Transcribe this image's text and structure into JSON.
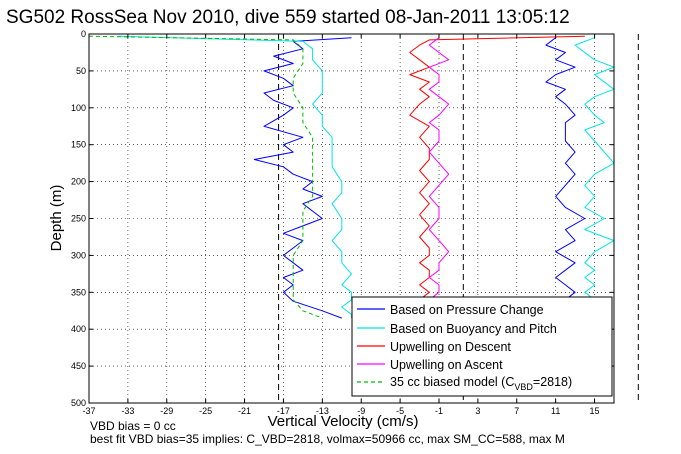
{
  "chart_data": {
    "type": "line",
    "title": "SG502 RossSea Nov 2010, dive 559 started 08-Jan-2011 13:05:12",
    "xlabel": "Vertical Velocity (cm/s)",
    "ylabel": "Depth (m)",
    "xlim": [
      -37,
      17
    ],
    "ylim": [
      500,
      0
    ],
    "y_reversed": true,
    "grid": true,
    "grid_style": "dotted",
    "x_ticks": [
      -37,
      -33,
      -29,
      -25,
      -21,
      -17,
      -13,
      -9,
      -5,
      -1,
      3,
      7,
      11,
      15
    ],
    "y_ticks": [
      0,
      50,
      100,
      150,
      200,
      250,
      300,
      350,
      400,
      450,
      500
    ],
    "vertical_reference_lines": [
      -17.5,
      1.5,
      19.5
    ],
    "legend_position": "lower-right",
    "series": [
      {
        "name": "Based on Pressure Change",
        "color": "#0000ff",
        "style": "solid",
        "groups": [
          {
            "x": [
              -10,
              -16,
              -15,
              -18,
              -16,
              -19,
              -17,
              -16,
              -19,
              -18,
              -16,
              -17,
              -19,
              -15,
              -17,
              -16,
              -20,
              -17,
              -16,
              -14,
              -15,
              -13,
              -15,
              -14,
              -13,
              -15,
              -17,
              -15,
              -16,
              -17,
              -16,
              -15,
              -17,
              -16,
              -17,
              -16,
              -13,
              -11
            ],
            "y": [
              5,
              10,
              20,
              30,
              40,
              50,
              60,
              70,
              80,
              90,
              100,
              110,
              125,
              140,
              150,
              160,
              170,
              180,
              190,
              200,
              210,
              220,
              230,
              240,
              250,
              260,
              270,
              280,
              290,
              300,
              310,
              320,
              330,
              340,
              350,
              362,
              375,
              385
            ]
          },
          {
            "x": [
              11,
              10,
              12,
              11,
              13,
              11,
              10,
              12,
              11,
              12,
              13,
              12,
              12,
              12,
              13,
              12,
              13,
              12,
              11,
              12,
              14,
              12,
              13,
              11,
              13,
              12,
              11,
              12,
              13,
              12,
              12
            ],
            "y": [
              5,
              15,
              25,
              35,
              45,
              55,
              65,
              75,
              85,
              95,
              110,
              120,
              130,
              145,
              160,
              175,
              190,
              205,
              220,
              235,
              250,
              265,
              280,
              295,
              310,
              320,
              330,
              340,
              350,
              360,
              365
            ]
          }
        ]
      },
      {
        "name": "Based on Buoyancy and Pitch",
        "color": "#00e5e5",
        "style": "solid",
        "groups": [
          {
            "x": [
              -34,
              -15,
              -14,
              -14,
              -13,
              -13,
              -13,
              -14,
              -13,
              -13,
              -12,
              -12,
              -12,
              -11,
              -11,
              -12,
              -11,
              -11,
              -12,
              -11,
              -11,
              -10,
              -11,
              -10,
              -10,
              -11,
              -10,
              -10
            ],
            "y": [
              3,
              10,
              20,
              35,
              50,
              65,
              80,
              95,
              110,
              125,
              140,
              160,
              180,
              200,
              215,
              230,
              250,
              265,
              280,
              295,
              310,
              325,
              340,
              350,
              360,
              370,
              380,
              385
            ]
          },
          {
            "x": [
              15,
              13,
              14,
              15,
              17,
              15,
              16,
              17,
              15,
              14,
              15,
              16,
              14,
              15,
              16,
              17,
              15,
              14,
              15,
              14,
              16,
              14,
              17,
              15,
              14,
              15,
              14,
              15,
              14,
              15,
              14
            ],
            "y": [
              5,
              15,
              25,
              35,
              45,
              55,
              65,
              75,
              85,
              95,
              110,
              120,
              130,
              145,
              160,
              175,
              190,
              205,
              220,
              235,
              250,
              265,
              280,
              295,
              310,
              320,
              330,
              340,
              350,
              360,
              365
            ]
          }
        ]
      },
      {
        "name": "Upwelling on Descent",
        "color": "#ff0000",
        "style": "solid",
        "groups": [
          {
            "x": [
              14,
              -2,
              -3,
              -4,
              -3,
              -2,
              -4,
              -2,
              -3,
              -2,
              -3,
              -4,
              -2,
              -3,
              -2,
              -2,
              -3,
              -2,
              -3,
              -2,
              -3,
              -2,
              -3,
              -2,
              -2,
              -3,
              -2,
              -2,
              -3,
              -2,
              -3,
              -2,
              -2,
              -3
            ],
            "y": [
              3,
              8,
              15,
              25,
              35,
              45,
              55,
              65,
              75,
              85,
              95,
              110,
              125,
              140,
              155,
              170,
              185,
              200,
              215,
              230,
              245,
              260,
              275,
              290,
              300,
              310,
              320,
              330,
              340,
              350,
              360,
              370,
              380,
              385
            ]
          }
        ]
      },
      {
        "name": "Upwelling on Ascent",
        "color": "#ff00ff",
        "style": "solid",
        "groups": [
          {
            "x": [
              -1,
              -2,
              -1,
              0,
              -2,
              -1,
              -1,
              -2,
              -1,
              0,
              -1,
              -2,
              -1,
              -1,
              -2,
              -1,
              0,
              -1,
              -2,
              -1,
              -1,
              -2,
              -1,
              0,
              -1,
              -1,
              -2,
              -1,
              -1,
              -2,
              -1
            ],
            "y": [
              5,
              15,
              25,
              35,
              45,
              55,
              65,
              75,
              85,
              95,
              110,
              120,
              130,
              145,
              160,
              175,
              190,
              205,
              220,
              235,
              250,
              265,
              280,
              295,
              310,
              320,
              330,
              340,
              350,
              360,
              365
            ]
          }
        ]
      },
      {
        "name": "35 cc biased model (C_VBD=2818)",
        "color": "#00bb00",
        "style": "dashed",
        "groups": [
          {
            "x": [
              -37,
              -16,
              -15,
              -15,
              -16,
              -16,
              -15,
              -15,
              -14,
              -14,
              -14,
              -14,
              -14,
              -15,
              -15,
              -15,
              -16,
              -16,
              -16,
              -16,
              -15,
              -13
            ],
            "y": [
              3,
              8,
              20,
              40,
              60,
              80,
              100,
              120,
              140,
              160,
              180,
              200,
              220,
              240,
              260,
              280,
              300,
              320,
              340,
              360,
              375,
              385
            ]
          }
        ]
      }
    ],
    "legend_labels": {
      "pressure": "Based on Pressure Change",
      "buoyancy": "Based on Buoyancy and Pitch",
      "upwell_descent": "Upwelling on Descent",
      "upwell_ascent": "Upwelling on Ascent",
      "model_prefix": "35 cc biased model (C",
      "model_sub": "VBD",
      "model_suffix": "=2818)"
    }
  },
  "footnotes": {
    "line1": "VBD bias = 0 cc",
    "line2": "best fit VBD bias=35 implies: C_VBD=2818, volmax=50966 cc, max SM_CC=588, max M"
  }
}
